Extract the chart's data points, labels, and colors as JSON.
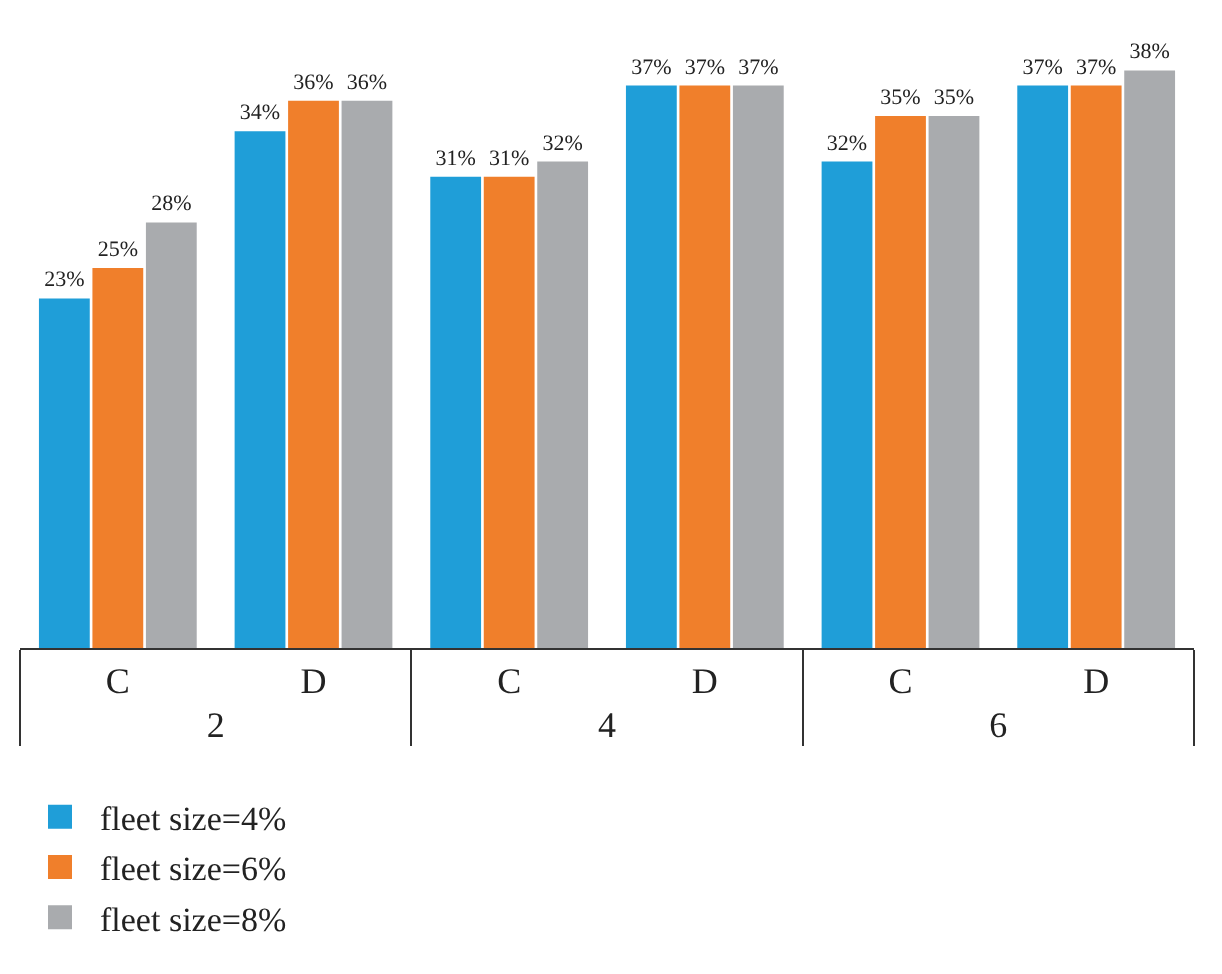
{
  "chart_data": {
    "type": "bar",
    "categories": [
      "C",
      "D",
      "C",
      "D",
      "C",
      "D"
    ],
    "annotations": [
      "2",
      "4",
      "6"
    ],
    "series": [
      {
        "name": "fleet size=4%",
        "color": "#1f9ed8",
        "values": [
          23,
          34,
          31,
          37,
          32,
          37
        ],
        "value_labels": [
          "23%",
          "34%",
          "31%",
          "37%",
          "32%",
          "37%"
        ]
      },
      {
        "name": "fleet size=6%",
        "color": "#f07f2b",
        "values": [
          25,
          36,
          31,
          37,
          35,
          37
        ],
        "value_labels": [
          "25%",
          "36%",
          "31%",
          "37%",
          "35%",
          "37%"
        ]
      },
      {
        "name": "fleet size=8%",
        "color": "#a9abae",
        "values": [
          28,
          36,
          32,
          37,
          35,
          38
        ],
        "value_labels": [
          "28%",
          "36%",
          "32%",
          "37%",
          "35%",
          "38%"
        ]
      }
    ],
    "legend": "bottom"
  }
}
